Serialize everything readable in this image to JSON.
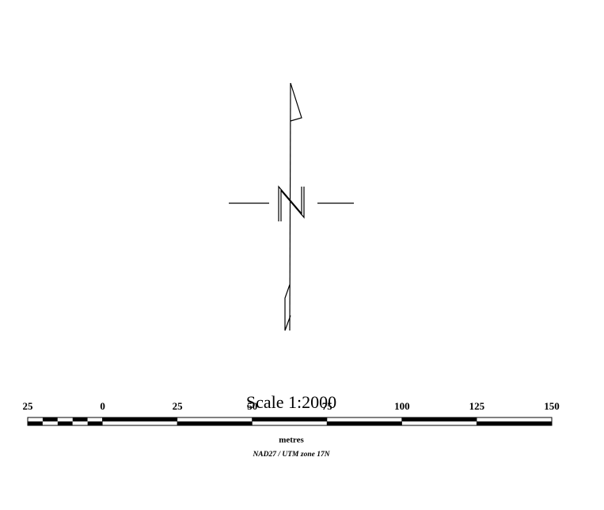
{
  "scale_bar": {
    "title": "Scale 1:2000",
    "xlim": [
      -25,
      150
    ],
    "xticks": [
      {
        "value": -25,
        "label": "25"
      },
      0,
      25,
      50,
      75,
      100,
      125,
      150
    ],
    "unit_label": "metres",
    "projection": "NAD27 / UTM zone 17N"
  }
}
